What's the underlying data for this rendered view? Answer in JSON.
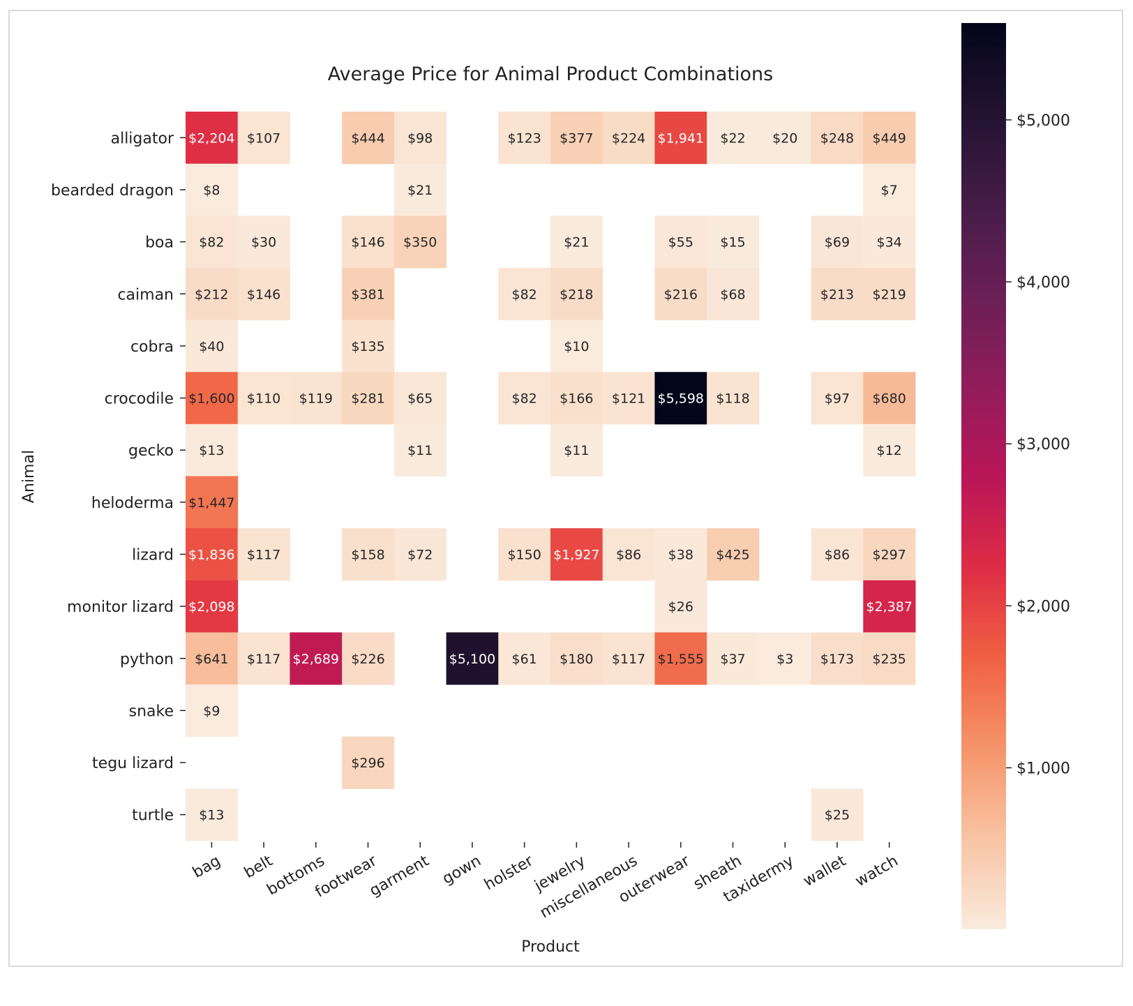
{
  "chart_data": {
    "type": "heatmap",
    "title": "Average Price for Animal Product Combinations",
    "xlabel": "Product",
    "ylabel": "Animal",
    "x_categories": [
      "bag",
      "belt",
      "bottoms",
      "footwear",
      "garment",
      "gown",
      "holster",
      "jewelry",
      "miscellaneous",
      "outerwear",
      "sheath",
      "taxidermy",
      "wallet",
      "watch"
    ],
    "y_categories": [
      "alligator",
      "bearded dragon",
      "boa",
      "caiman",
      "cobra",
      "crocodile",
      "gecko",
      "heloderma",
      "lizard",
      "monitor lizard",
      "python",
      "snake",
      "tegu lizard",
      "turtle"
    ],
    "values": [
      [
        2204,
        107,
        null,
        444,
        98,
        null,
        123,
        377,
        224,
        1941,
        22,
        20,
        248,
        449
      ],
      [
        8,
        null,
        null,
        null,
        21,
        null,
        null,
        null,
        null,
        null,
        null,
        null,
        null,
        7
      ],
      [
        82,
        30,
        null,
        146,
        350,
        null,
        null,
        21,
        null,
        55,
        15,
        null,
        69,
        34
      ],
      [
        212,
        146,
        null,
        381,
        null,
        null,
        82,
        218,
        null,
        216,
        68,
        null,
        213,
        219
      ],
      [
        40,
        null,
        null,
        135,
        null,
        null,
        null,
        10,
        null,
        null,
        null,
        null,
        null,
        null
      ],
      [
        1600,
        110,
        119,
        281,
        65,
        null,
        82,
        166,
        121,
        5598,
        118,
        null,
        97,
        680
      ],
      [
        13,
        null,
        null,
        null,
        11,
        null,
        null,
        11,
        null,
        null,
        null,
        null,
        null,
        12
      ],
      [
        1447,
        null,
        null,
        null,
        null,
        null,
        null,
        null,
        null,
        null,
        null,
        null,
        null,
        null
      ],
      [
        1836,
        117,
        null,
        158,
        72,
        null,
        150,
        1927,
        86,
        38,
        425,
        null,
        86,
        297
      ],
      [
        2098,
        null,
        null,
        null,
        null,
        null,
        null,
        null,
        null,
        26,
        null,
        null,
        null,
        2387
      ],
      [
        641,
        117,
        2689,
        226,
        null,
        5100,
        61,
        180,
        117,
        1555,
        37,
        3,
        173,
        235
      ],
      [
        9,
        null,
        null,
        null,
        null,
        null,
        null,
        null,
        null,
        null,
        null,
        null,
        null,
        null
      ],
      [
        null,
        null,
        null,
        296,
        null,
        null,
        null,
        null,
        null,
        null,
        null,
        null,
        null,
        null
      ],
      [
        13,
        null,
        null,
        null,
        null,
        null,
        null,
        null,
        null,
        null,
        null,
        null,
        25,
        null
      ]
    ],
    "colormap": "rocket_r",
    "colorbar": {
      "range": [
        3,
        5598
      ],
      "ticks": [
        1000,
        2000,
        3000,
        4000,
        5000
      ],
      "tick_labels": [
        "$1,000",
        "$2,000",
        "$3,000",
        "$4,000",
        "$5,000"
      ]
    },
    "value_format": "$ with thousands separator",
    "grid": false
  }
}
